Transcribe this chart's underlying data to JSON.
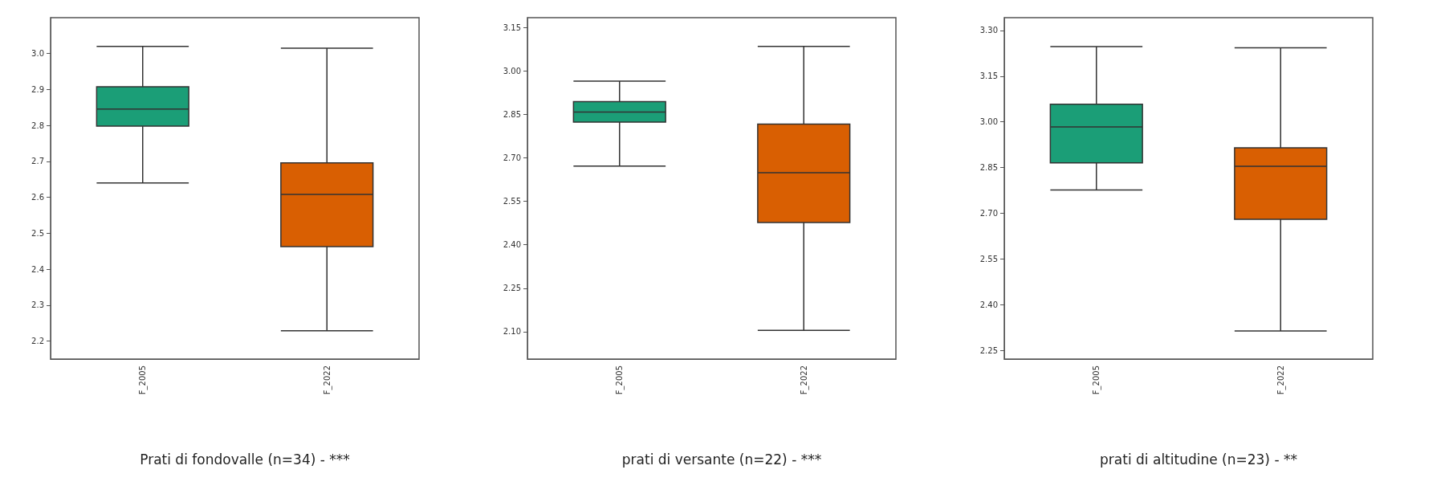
{
  "chart_data": [
    {
      "type": "box",
      "title": "Prati di fondovalle (n=34) - ***",
      "categories": [
        "F_2005",
        "F_2022"
      ],
      "colors": [
        "#1b9e77",
        "#d95f02"
      ],
      "boxes": [
        {
          "low": 2.64,
          "q1": 2.798,
          "median": 2.846,
          "q3": 2.908,
          "high": 3.02
        },
        {
          "low": 2.229,
          "q1": 2.463,
          "median": 2.608,
          "q3": 2.696,
          "high": 3.015
        }
      ],
      "ylim": [
        2.15,
        3.1
      ],
      "yticks": [
        2.2,
        2.3,
        2.4,
        2.5,
        2.6,
        2.7,
        2.8,
        2.9,
        {
          "value": 3,
          "label": "3.0"
        }
      ],
      "grid": false
    },
    {
      "type": "box",
      "title": "prati di versante (n=22) - ***",
      "categories": [
        "F_2005",
        "F_2022"
      ],
      "colors": [
        "#1b9e77",
        "#d95f02"
      ],
      "boxes": [
        {
          "low": 2.672,
          "q1": 2.824,
          "median": 2.859,
          "q3": 2.895,
          "high": 2.966
        },
        {
          "low": 2.104,
          "q1": 2.477,
          "median": 2.649,
          "q3": 2.817,
          "high": 3.086
        }
      ],
      "ylim": [
        2.005,
        3.185
      ],
      "yticks": [
        {
          "value": 2.1,
          "label": "2.10"
        },
        2.25,
        {
          "value": 2.4,
          "label": "2.40"
        },
        2.55,
        {
          "value": 2.7,
          "label": "2.70"
        },
        2.85,
        {
          "value": 3,
          "label": "3.00"
        },
        3.15
      ],
      "grid": false
    },
    {
      "type": "box",
      "title": "prati di altitudine (n=23) - **",
      "categories": [
        "F_2005",
        "F_2022"
      ],
      "colors": [
        "#1b9e77",
        "#d95f02"
      ],
      "boxes": [
        {
          "low": 2.776,
          "q1": 2.865,
          "median": 2.983,
          "q3": 3.058,
          "high": 3.247
        },
        {
          "low": 2.313,
          "q1": 2.68,
          "median": 2.854,
          "q3": 2.915,
          "high": 3.243
        }
      ],
      "ylim": [
        2.221,
        3.342
      ],
      "yticks": [
        2.25,
        {
          "value": 2.4,
          "label": "2.40"
        },
        2.55,
        {
          "value": 2.7,
          "label": "2.70"
        },
        2.85,
        {
          "value": 3,
          "label": "3.00"
        },
        3.15,
        {
          "value": 3.3,
          "label": "3.30"
        }
      ],
      "grid": false
    }
  ]
}
